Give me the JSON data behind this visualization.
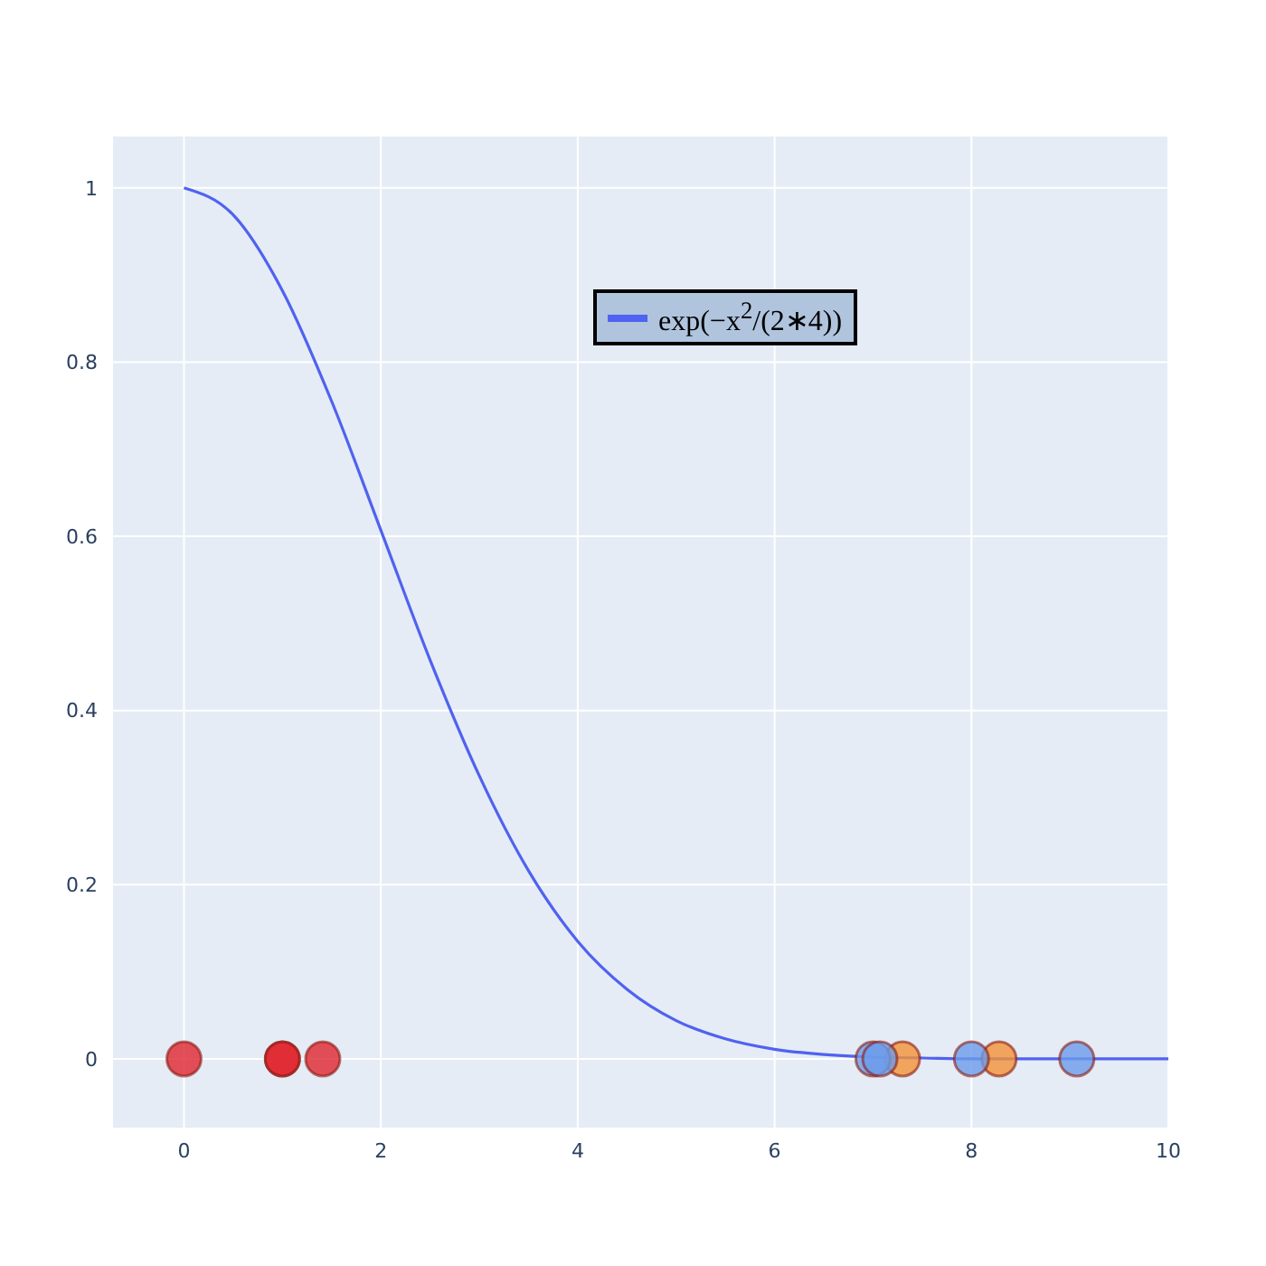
{
  "chart_data": {
    "type": "scatter",
    "xlim": [
      -0.73,
      10
    ],
    "ylim": [
      -0.08,
      1.06
    ],
    "xticks": [
      0,
      2,
      4,
      6,
      8,
      10
    ],
    "yticks": [
      0,
      0.2,
      0.4,
      0.6,
      0.8,
      1
    ],
    "grid": true,
    "legend": "top right",
    "series": [
      {
        "type": "line",
        "name": "exp(−x$^{2}$/(2∗4))",
        "color": "#5062f0",
        "marker": "none",
        "x": [
          0,
          0.5,
          1,
          1.5,
          2,
          2.5,
          3,
          3.5,
          4,
          4.5,
          5,
          5.5,
          6,
          6.5,
          7,
          7.5,
          8,
          9,
          10
        ],
        "values": [
          1,
          0.969,
          0.882,
          0.755,
          0.607,
          0.458,
          0.325,
          0.216,
          0.135,
          0.08,
          0.044,
          0.023,
          0.011,
          0.005,
          0.002,
          0.001,
          0,
          0,
          0
        ]
      },
      {
        "color": "#e0262e",
        "marker": "circle",
        "x": [
          0,
          1,
          1,
          1.41
        ],
        "values": [
          0,
          0,
          0,
          0
        ]
      },
      {
        "color": "#f39237",
        "marker": "circle",
        "x": [
          7.3,
          8.28
        ],
        "values": [
          0,
          0
        ]
      },
      {
        "color": "#6b9bea",
        "marker": "circle",
        "x": [
          7.0,
          7.07,
          8.0,
          9.07
        ],
        "values": [
          0,
          0,
          0,
          0
        ]
      }
    ]
  }
}
